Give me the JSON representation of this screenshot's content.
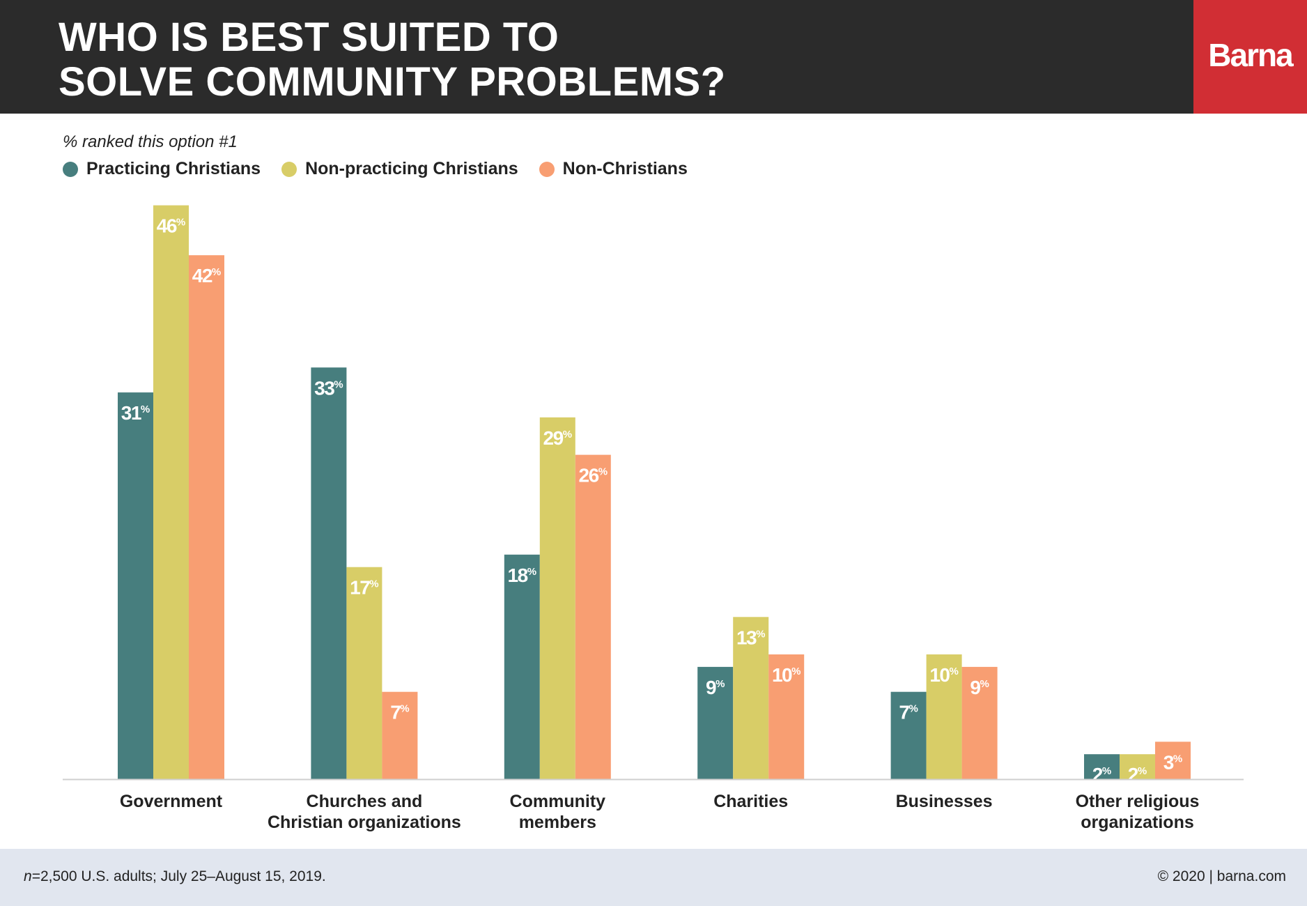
{
  "header": {
    "title_lines": [
      "WHO IS BEST SUITED TO",
      "SOLVE COMMUNITY PROBLEMS?"
    ],
    "brand": "Barna",
    "background_color": "#2b2b2b",
    "brand_color": "#d12e34"
  },
  "subtitle": "% ranked this option #1",
  "legend": [
    {
      "label": "Practicing Christians",
      "color": "#477e7e"
    },
    {
      "label": "Non-practicing Christians",
      "color": "#d8cd67"
    },
    {
      "label": "Non-Christians",
      "color": "#f89e72"
    }
  ],
  "chart_data": {
    "type": "bar",
    "title": "WHO IS BEST SUITED TO SOLVE COMMUNITY PROBLEMS?",
    "subtitle": "% ranked this option #1",
    "categories": [
      [
        "Government"
      ],
      [
        "Churches and",
        "Christian organizations"
      ],
      [
        "Community",
        "members"
      ],
      [
        "Charities"
      ],
      [
        "Businesses"
      ],
      [
        "Other religious",
        "organizations"
      ]
    ],
    "series": [
      {
        "name": "Practicing Christians",
        "color": "#477e7e",
        "values": [
          31,
          33,
          18,
          9,
          7,
          2
        ]
      },
      {
        "name": "Non-practicing Christians",
        "color": "#d8cd67",
        "values": [
          46,
          17,
          29,
          13,
          10,
          2
        ]
      },
      {
        "name": "Non-Christians",
        "color": "#f89e72",
        "values": [
          42,
          7,
          26,
          10,
          9,
          3
        ]
      }
    ],
    "value_suffix": "%",
    "ylim": [
      0,
      46
    ],
    "grid": false,
    "legend_position": "top-left"
  },
  "footer": {
    "note_prefix": "n",
    "note": "=2,500 U.S. adults; July 25–August 15, 2019.",
    "copyright": "© 2020 | barna.com"
  }
}
